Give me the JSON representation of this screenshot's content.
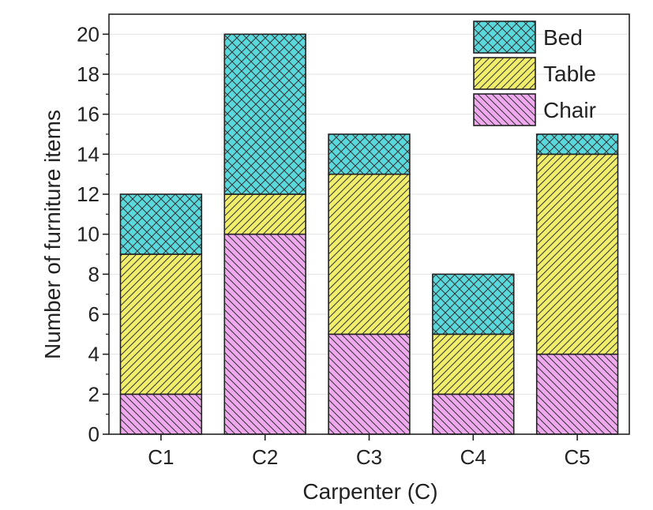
{
  "chart_data": {
    "type": "bar",
    "stacked": true,
    "categories": [
      "C1",
      "C2",
      "C3",
      "C4",
      "C5"
    ],
    "series": [
      {
        "name": "Chair",
        "values": [
          2,
          10,
          5,
          2,
          4
        ],
        "color": "#f0a8ee",
        "pattern": "diagonal-back"
      },
      {
        "name": "Table",
        "values": [
          7,
          2,
          8,
          3,
          10
        ],
        "color": "#f0ee6a",
        "pattern": "diagonal-forward"
      },
      {
        "name": "Bed",
        "values": [
          3,
          8,
          2,
          3,
          1
        ],
        "color": "#5ad9dd",
        "pattern": "crosshatch"
      }
    ],
    "xlabel": "Carpenter (C)",
    "ylabel": "Number of furniture items",
    "ylim": [
      0,
      21
    ],
    "yticks": [
      0,
      2,
      4,
      6,
      8,
      10,
      12,
      14,
      16,
      18,
      20
    ],
    "legend_position": "top-right",
    "grid": "horizontal"
  }
}
